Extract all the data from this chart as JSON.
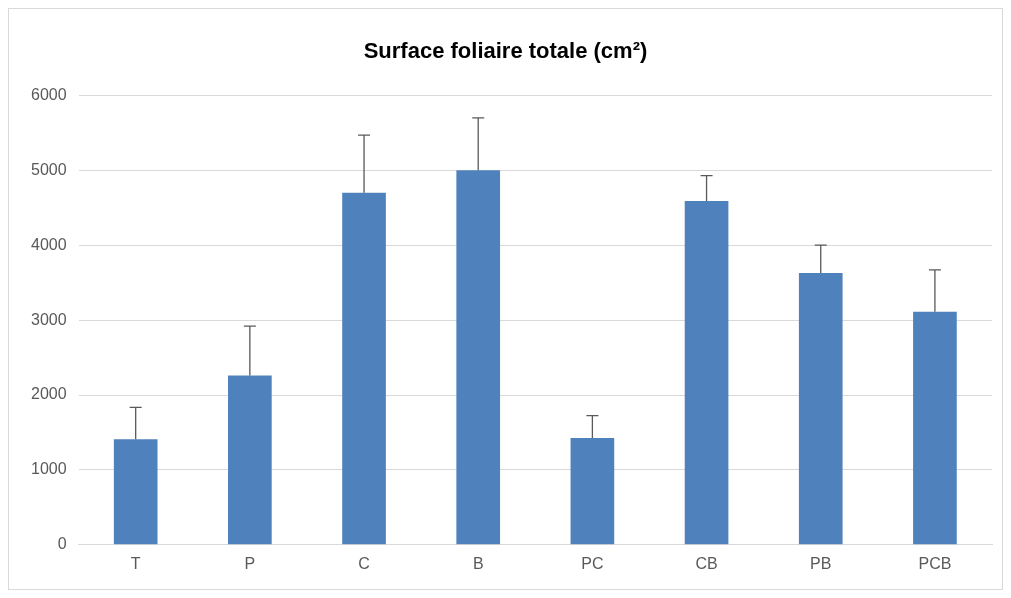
{
  "chart_data": {
    "type": "bar",
    "title": "Surface foliaire totale (cm²)",
    "categories": [
      "T",
      "P",
      "C",
      "B",
      "PC",
      "CB",
      "PB",
      "PCB"
    ],
    "values": [
      1410,
      2260,
      4700,
      5000,
      1425,
      4590,
      3630,
      3110
    ],
    "errors": [
      [
        1410,
        1835
      ],
      [
        2260,
        2920
      ],
      [
        4700,
        5470
      ],
      [
        5000,
        5700
      ],
      [
        1425,
        1725
      ],
      [
        4590,
        4930
      ],
      [
        3630,
        4000
      ],
      [
        3110,
        3670
      ]
    ],
    "color": "#4f81bd",
    "ylim": [
      0,
      6000
    ],
    "yticks": [
      0,
      1000,
      2000,
      3000,
      4000,
      5000,
      6000
    ],
    "grid": "y",
    "legend": false
  }
}
